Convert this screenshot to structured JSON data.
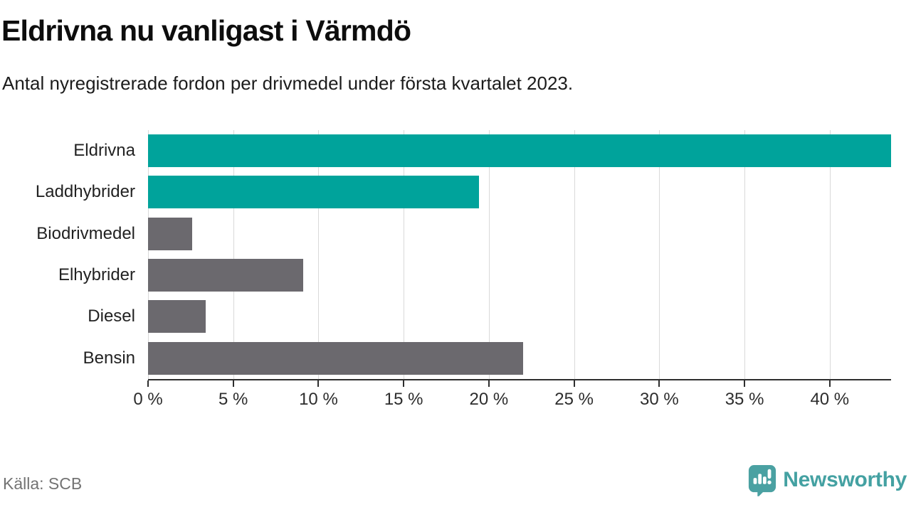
{
  "header": {
    "title": "Eldrivna nu vanligast i Värmdö",
    "subtitle": "Antal nyregistrerade fordon per drivmedel under första kvartalet 2023."
  },
  "chart_data": {
    "type": "bar",
    "orientation": "horizontal",
    "title": "Eldrivna nu vanligast i Värmdö",
    "subtitle": "Antal nyregistrerade fordon per drivmedel under första kvartalet 2023.",
    "categories": [
      "Eldrivna",
      "Laddhybrider",
      "Biodrivmedel",
      "Elhybrider",
      "Diesel",
      "Bensin"
    ],
    "values": [
      43.6,
      19.4,
      2.6,
      9.1,
      3.4,
      22.0
    ],
    "unit": "%",
    "xlim": [
      0,
      43.6
    ],
    "xticks": [
      0,
      5,
      10,
      15,
      20,
      25,
      30,
      35,
      40
    ],
    "xtick_suffix": " %",
    "grid": "vertical",
    "colors": [
      "#00a39b",
      "#00a39b",
      "#6b696e",
      "#6b696e",
      "#6b696e",
      "#6b696e"
    ],
    "accent_color": "#00a39b",
    "default_bar_color": "#6b696e",
    "grid_color": "#d9d9d9",
    "axis_color": "#2e2e2e",
    "legend": "none"
  },
  "footer": {
    "source": "Källa: SCB",
    "brand": "Newsworthy",
    "brand_color": "#44a1a2",
    "logo_icon": "newsworthy-speech-bubble-chart-icon"
  }
}
